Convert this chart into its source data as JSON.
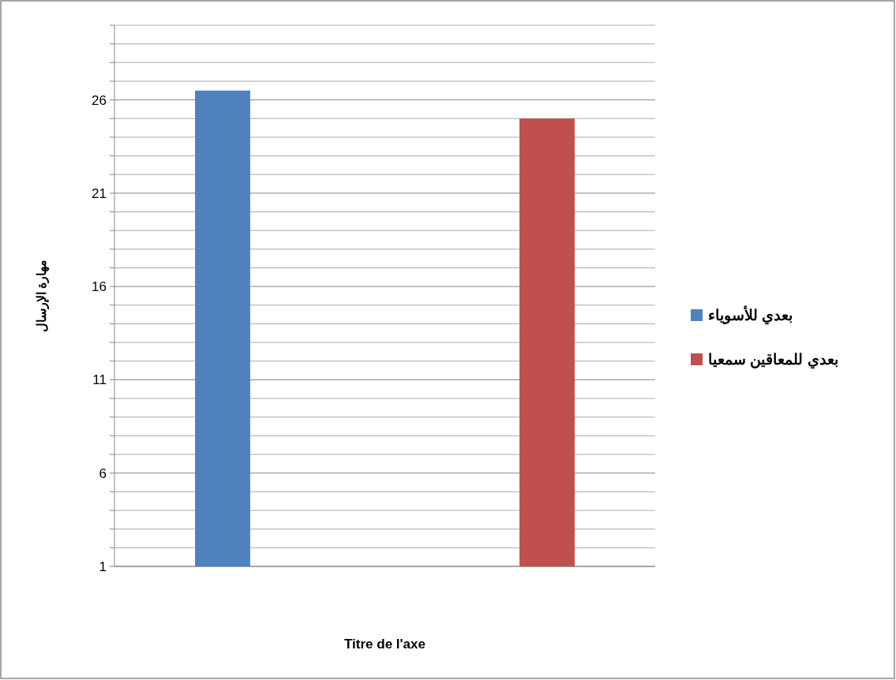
{
  "chart_data": {
    "type": "bar",
    "xlabel": "Titre de l'axe",
    "ylabel": "مهارة الإرسال",
    "categories": [
      null
    ],
    "series": [
      {
        "name": "بعدي للأسوياء",
        "color": "#4f81bd",
        "values": [
          26.5
        ]
      },
      {
        "name": "بعدي للمعاقين سمعيا",
        "color": "#c0504d",
        "values": [
          25
        ]
      }
    ],
    "ylim": [
      1,
      30
    ],
    "yticks": [
      1,
      {
        "value": 2,
        "label": null
      },
      {
        "value": 3,
        "label": null
      },
      {
        "value": 4,
        "label": null
      },
      {
        "value": 5,
        "label": null
      },
      6,
      {
        "value": 7,
        "label": null
      },
      {
        "value": 8,
        "label": null
      },
      {
        "value": 9,
        "label": null
      },
      {
        "value": 10,
        "label": null
      },
      11,
      {
        "value": 12,
        "label": null
      },
      {
        "value": 13,
        "label": null
      },
      {
        "value": 14,
        "label": null
      },
      {
        "value": 15,
        "label": null
      },
      16,
      {
        "value": 17,
        "label": null
      },
      {
        "value": 18,
        "label": null
      },
      {
        "value": 19,
        "label": null
      },
      {
        "value": 20,
        "label": null
      },
      21,
      {
        "value": 22,
        "label": null
      },
      {
        "value": 23,
        "label": null
      },
      {
        "value": 24,
        "label": null
      },
      {
        "value": 25,
        "label": null
      },
      26,
      {
        "value": 27,
        "label": null
      },
      {
        "value": 28,
        "label": null
      },
      {
        "value": 29,
        "label": null
      },
      {
        "value": 30,
        "label": null
      }
    ],
    "grid": "y",
    "legend": "right"
  }
}
